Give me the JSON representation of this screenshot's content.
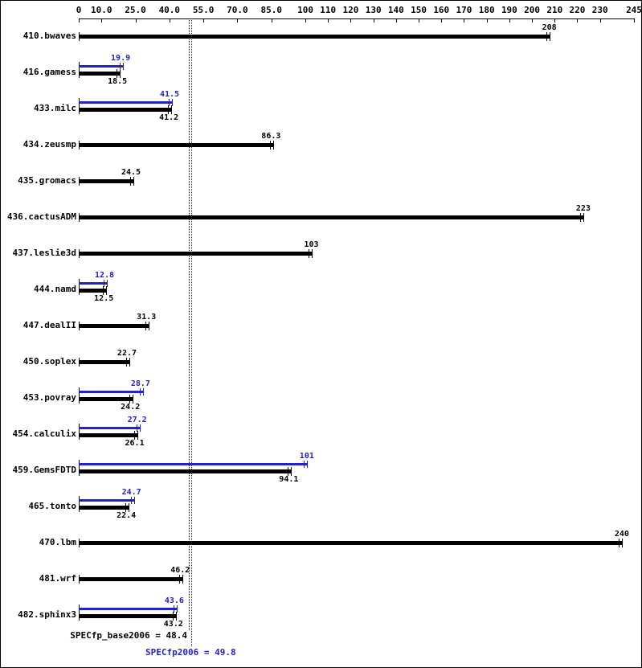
{
  "chart_data": {
    "type": "bar",
    "orientation": "horizontal",
    "title": "",
    "xlabel": "",
    "ylabel": "",
    "grid": false,
    "legend": "none",
    "x_axis": {
      "min": 0,
      "max": 245,
      "ticks": [
        {
          "value": 0,
          "label": "0"
        },
        {
          "value": 10,
          "label": "10.0"
        },
        {
          "value": 25,
          "label": "25.0"
        },
        {
          "value": 40,
          "label": "40.0"
        },
        {
          "value": 55,
          "label": "55.0"
        },
        {
          "value": 70,
          "label": "70.0"
        },
        {
          "value": 85,
          "label": "85.0"
        },
        {
          "value": 100,
          "label": "100"
        },
        {
          "value": 110,
          "label": "110"
        },
        {
          "value": 120,
          "label": "120"
        },
        {
          "value": 130,
          "label": "130"
        },
        {
          "value": 140,
          "label": "140"
        },
        {
          "value": 150,
          "label": "150"
        },
        {
          "value": 160,
          "label": "160"
        },
        {
          "value": 170,
          "label": "170"
        },
        {
          "value": 180,
          "label": "180"
        },
        {
          "value": 190,
          "label": "190"
        },
        {
          "value": 200,
          "label": "200"
        },
        {
          "value": 210,
          "label": "210"
        },
        {
          "value": 220,
          "label": "220"
        },
        {
          "value": 230,
          "label": "230"
        },
        {
          "value": 245,
          "label": "245"
        }
      ]
    },
    "series_colors": {
      "base": "#000000",
      "peak": "#2222cc"
    },
    "benchmarks": [
      {
        "name": "410.bwaves",
        "base": 208,
        "base_label": "208",
        "peak": null,
        "peak_label": null
      },
      {
        "name": "416.gamess",
        "base": 18.5,
        "base_label": "18.5",
        "peak": 19.9,
        "peak_label": "19.9"
      },
      {
        "name": "433.milc",
        "base": 41.2,
        "base_label": "41.2",
        "peak": 41.5,
        "peak_label": "41.5"
      },
      {
        "name": "434.zeusmp",
        "base": 86.3,
        "base_label": "86.3",
        "peak": null,
        "peak_label": null
      },
      {
        "name": "435.gromacs",
        "base": 24.5,
        "base_label": "24.5",
        "peak": null,
        "peak_label": null
      },
      {
        "name": "436.cactusADM",
        "base": 223,
        "base_label": "223",
        "peak": null,
        "peak_label": null
      },
      {
        "name": "437.leslie3d",
        "base": 103,
        "base_label": "103",
        "peak": null,
        "peak_label": null
      },
      {
        "name": "444.namd",
        "base": 12.5,
        "base_label": "12.5",
        "peak": 12.8,
        "peak_label": "12.8"
      },
      {
        "name": "447.dealII",
        "base": 31.3,
        "base_label": "31.3",
        "peak": null,
        "peak_label": null
      },
      {
        "name": "450.soplex",
        "base": 22.7,
        "base_label": "22.7",
        "peak": null,
        "peak_label": null
      },
      {
        "name": "453.povray",
        "base": 24.2,
        "base_label": "24.2",
        "peak": 28.7,
        "peak_label": "28.7"
      },
      {
        "name": "454.calculix",
        "base": 26.1,
        "base_label": "26.1",
        "peak": 27.2,
        "peak_label": "27.2"
      },
      {
        "name": "459.GemsFDTD",
        "base": 94.1,
        "base_label": "94.1",
        "peak": 101,
        "peak_label": "101"
      },
      {
        "name": "465.tonto",
        "base": 22.4,
        "base_label": "22.4",
        "peak": 24.7,
        "peak_label": "24.7"
      },
      {
        "name": "470.lbm",
        "base": 240,
        "base_label": "240",
        "peak": null,
        "peak_label": null
      },
      {
        "name": "481.wrf",
        "base": 46.2,
        "base_label": "46.2",
        "peak": null,
        "peak_label": null
      },
      {
        "name": "482.sphinx3",
        "base": 43.2,
        "base_label": "43.2",
        "peak": 43.6,
        "peak_label": "43.6"
      }
    ],
    "means": {
      "base": {
        "value": 48.4,
        "label": "SPECfp_base2006 = 48.4",
        "color": "#000000"
      },
      "peak": {
        "value": 49.8,
        "label": "SPECfp2006 = 49.8",
        "color": "#2222cc"
      }
    }
  }
}
